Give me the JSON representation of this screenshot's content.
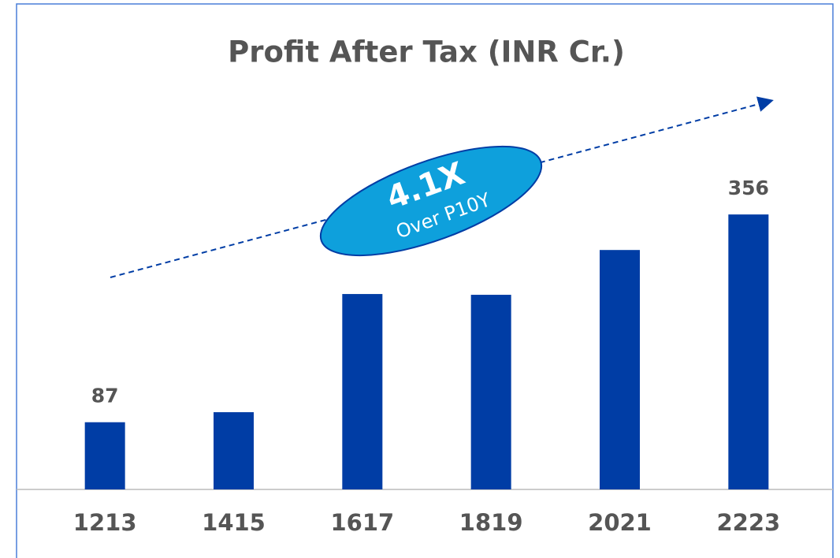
{
  "chart_data": {
    "type": "bar",
    "title": "Profit After Tax (INR Cr.)",
    "categories": [
      "1213",
      "1415",
      "1617",
      "1819",
      "2021",
      "2223"
    ],
    "values": [
      87,
      100,
      253,
      252,
      310,
      356
    ],
    "value_labels": [
      "87",
      null,
      null,
      null,
      null,
      "356"
    ],
    "color": "#003da5",
    "ylim": [
      0,
      400
    ],
    "annotation": {
      "headline": "4.1X",
      "text": "Over P10Y"
    }
  }
}
